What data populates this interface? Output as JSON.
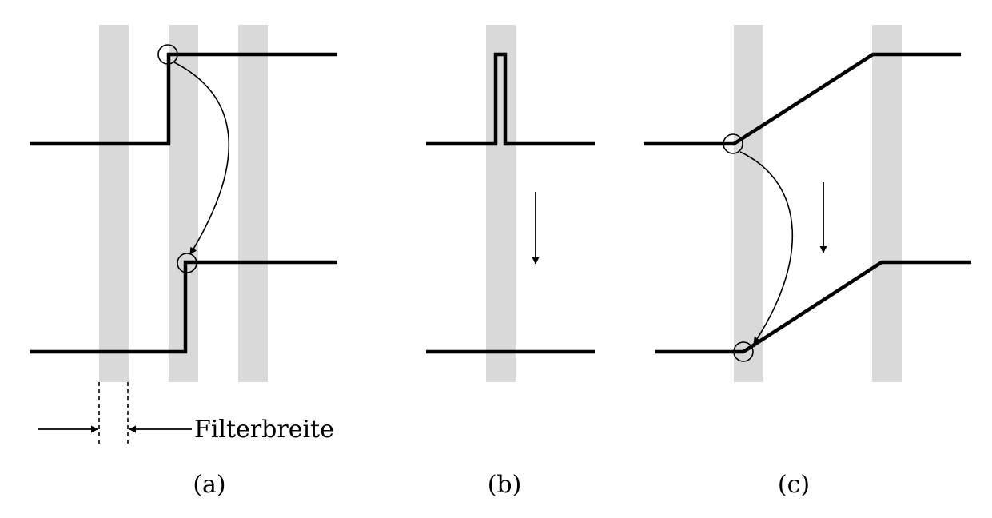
{
  "annotations": {
    "filter_width_label": "Filterbreite"
  },
  "panels": [
    {
      "label": "(a)"
    },
    {
      "label": "(b)"
    },
    {
      "label": "(c)"
    }
  ],
  "colors": {
    "band": "#d9d9d9",
    "line": "#000000",
    "background": "#ffffff"
  }
}
